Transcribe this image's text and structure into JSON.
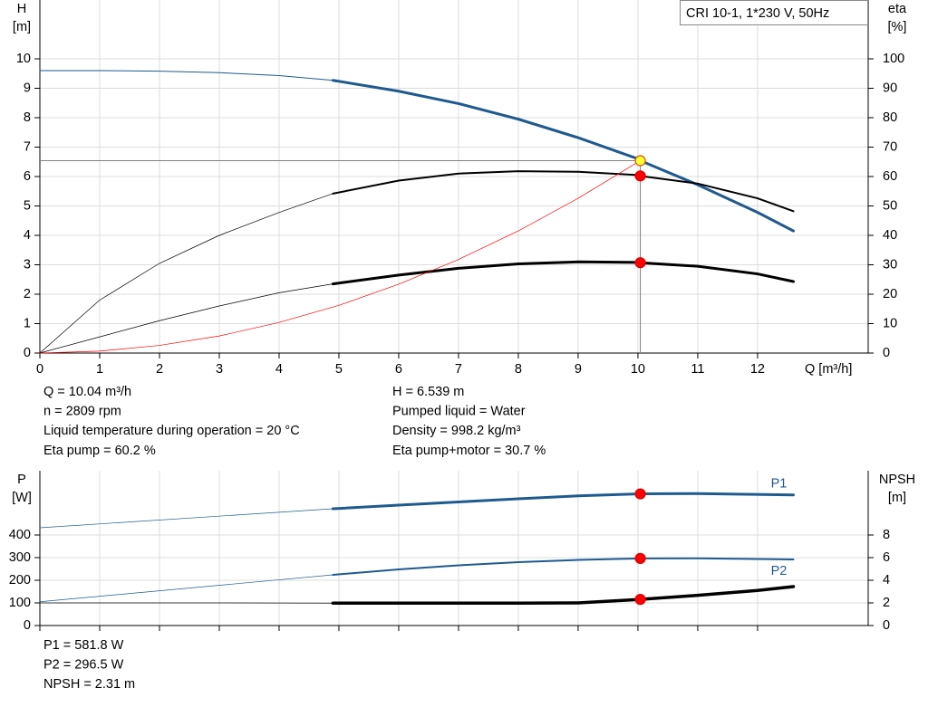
{
  "chart_data": [
    {
      "type": "line",
      "title": "CRI 10-1, 1*230 V, 50Hz",
      "ylabel": "H",
      "yunit": "[m]",
      "y2label": "eta",
      "y2unit": "[%]",
      "xlabel": "Q [m³/h]",
      "xlim": [
        0,
        13.85
      ],
      "xticks": [
        0,
        1,
        2,
        3,
        4,
        5,
        6,
        7,
        8,
        9,
        10,
        11,
        12
      ],
      "xtick_labels": true,
      "ylim": [
        0,
        12
      ],
      "yticks": [
        0,
        1,
        2,
        3,
        4,
        5,
        6,
        7,
        8,
        9,
        10
      ],
      "y2lim": [
        0,
        120
      ],
      "y2ticks": [
        0,
        10,
        20,
        30,
        40,
        50,
        60,
        70,
        80,
        90,
        100
      ],
      "grid": true,
      "series": [
        {
          "color": "#1f5a8f",
          "width": 1,
          "x": [
            0,
            1,
            2,
            3,
            4,
            4.9
          ],
          "values": [
            9.6,
            9.6,
            9.58,
            9.53,
            9.43,
            9.27
          ]
        },
        {
          "color": "#1f5a8f",
          "width": 3,
          "x": [
            4.9,
            6,
            7,
            8,
            9,
            10,
            10.04,
            11,
            12,
            12.6
          ],
          "values": [
            9.27,
            8.9,
            8.48,
            7.95,
            7.32,
            6.6,
            6.54,
            5.72,
            4.78,
            4.15
          ]
        },
        {
          "color": "#000000",
          "width": 0.7,
          "axis": "y2",
          "x": [
            0,
            1,
            2,
            3,
            4,
            4.9
          ],
          "values": [
            0,
            18,
            30.5,
            40,
            47.8,
            54.2
          ]
        },
        {
          "color": "#000000",
          "width": 2,
          "axis": "y2",
          "x": [
            4.9,
            6,
            7,
            8,
            9,
            10,
            10.04,
            11,
            12,
            12.6
          ],
          "values": [
            54.2,
            58.6,
            61,
            61.8,
            61.6,
            60.5,
            60.2,
            57.6,
            52.6,
            48.2
          ]
        },
        {
          "color": "#000000",
          "width": 0.7,
          "axis": "y2",
          "x": [
            0,
            1,
            2,
            3,
            4,
            4.9
          ],
          "values": [
            0,
            5.5,
            11,
            16,
            20.5,
            23.5
          ]
        },
        {
          "color": "#000000",
          "width": 3,
          "axis": "y2",
          "x": [
            4.9,
            6,
            7,
            8,
            9,
            10,
            10.04,
            11,
            12,
            12.6
          ],
          "values": [
            23.5,
            26.5,
            28.8,
            30.3,
            31,
            30.8,
            30.7,
            29.5,
            26.9,
            24.3
          ]
        },
        {
          "color": "#ff0000",
          "width": 0.7,
          "x": [
            0,
            1,
            2,
            3,
            4,
            5,
            6,
            7,
            8,
            9,
            10.04
          ],
          "values": [
            0,
            0.065,
            0.26,
            0.58,
            1.04,
            1.62,
            2.34,
            3.18,
            4.15,
            5.26,
            6.539
          ]
        }
      ],
      "operating_point": {
        "x": 10.04,
        "y": 6.539
      },
      "points": [
        {
          "x": 10.04,
          "y": 60.2,
          "axis": "y2",
          "color": "#ff0000",
          "edge": "#e00000"
        },
        {
          "x": 10.04,
          "y": 30.7,
          "axis": "y2",
          "color": "#ff0000",
          "edge": "#e00000"
        },
        {
          "x": 10.04,
          "y": 6.539,
          "color": "#ffff33",
          "edge": "#e05000"
        }
      ],
      "info": [
        [
          "Q = 10.04 m³/h",
          "n = 2809 rpm",
          "Liquid temperature during operation = 20 °C",
          "Eta pump = 60.2 %"
        ],
        [
          "H = 6.539 m",
          "Pumped liquid = Water",
          "Density = 998.2 kg/m³",
          "Eta pump+motor = 30.7 %"
        ]
      ]
    },
    {
      "type": "line",
      "ylabel": "P",
      "yunit": "[W]",
      "y2label": "NPSH",
      "y2unit": "[m]",
      "xlim": [
        0,
        13.85
      ],
      "xticks": [
        0,
        1,
        2,
        3,
        4,
        5,
        6,
        7,
        8,
        9,
        10,
        11,
        12
      ],
      "xtick_labels": false,
      "ylim": [
        0,
        684
      ],
      "yticks": [
        0,
        100,
        200,
        300,
        400
      ],
      "y2lim": [
        0,
        13.68
      ],
      "y2ticks": [
        0,
        2,
        4,
        6,
        8
      ],
      "grid": true,
      "series": [
        {
          "color": "#1f5a8f",
          "width": 0.7,
          "x": [
            0,
            4.9
          ],
          "values": [
            432,
            516
          ]
        },
        {
          "name": "P1",
          "color": "#1f5a8f",
          "width": 3,
          "x": [
            4.9,
            6,
            7,
            8,
            9,
            10.04,
            11,
            12.6
          ],
          "values": [
            516,
            532,
            546,
            560,
            573,
            581.8,
            583,
            577
          ]
        },
        {
          "color": "#1f5a8f",
          "width": 0.7,
          "x": [
            0,
            4.9
          ],
          "values": [
            105,
            224
          ]
        },
        {
          "name": "P2",
          "color": "#1f5a8f",
          "width": 2,
          "x": [
            4.9,
            6,
            7,
            8,
            9,
            10.04,
            11,
            12.6
          ],
          "values": [
            224,
            248,
            266,
            280,
            290,
            296.5,
            297,
            292
          ]
        },
        {
          "color": "#000000",
          "width": 0.7,
          "axis": "y2",
          "x": [
            0,
            3,
            4.9
          ],
          "values": [
            2,
            2,
            1.98
          ]
        },
        {
          "color": "#000000",
          "width": 3.5,
          "axis": "y2",
          "x": [
            4.9,
            6,
            7,
            8,
            9,
            10.04,
            11,
            12,
            12.6
          ],
          "values": [
            1.98,
            1.98,
            1.98,
            1.98,
            2,
            2.31,
            2.67,
            3.1,
            3.44
          ]
        }
      ],
      "points": [
        {
          "x": 10.04,
          "y": 581.8,
          "color": "#ff0000",
          "edge": "#e00000"
        },
        {
          "x": 10.04,
          "y": 296.5,
          "color": "#ff0000",
          "edge": "#e00000"
        },
        {
          "x": 10.04,
          "y": 2.31,
          "axis": "y2",
          "color": "#ff0000",
          "edge": "#e00000"
        }
      ],
      "info": [
        [
          "P1 = 581.8 W",
          "P2 = 296.5 W",
          "NPSH = 2.31 m"
        ]
      ]
    }
  ]
}
